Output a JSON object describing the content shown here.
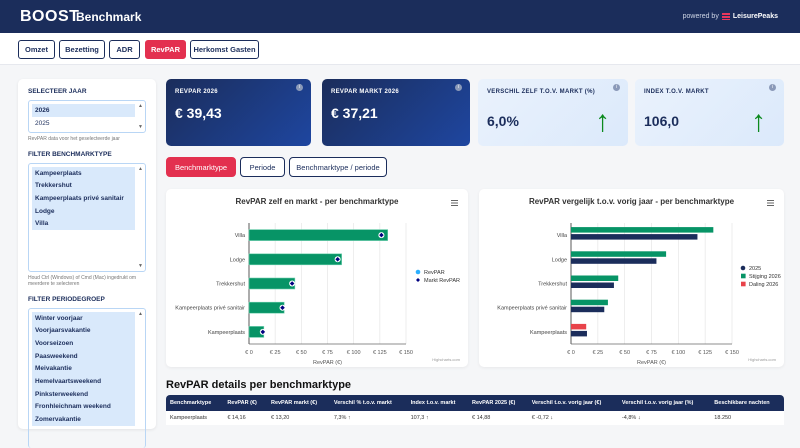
{
  "header": {
    "logo": "BOOST",
    "title": "Benchmark",
    "powered_by": "powered by",
    "brand": "LeisurePeaks"
  },
  "nav": [
    {
      "label": "Omzet"
    },
    {
      "label": "Bezetting"
    },
    {
      "label": "ADR"
    },
    {
      "label": "RevPAR",
      "active": true
    },
    {
      "label": "Herkomst Gasten"
    }
  ],
  "sidebar": {
    "year_label": "SELECTEER JAAR",
    "years": [
      "2026",
      "2025"
    ],
    "year_hint": "RevPAR data voor het geselecteerde jaar",
    "type_label": "FILTER BENCHMARKTYPE",
    "types": [
      "Kampeerplaats",
      "Trekkershut",
      "Kampeerplaats privé sanitair",
      "Lodge",
      "Villa"
    ],
    "type_hint": "Houd Ctrl (Windows) of Cmd (Mac) ingedrukt om meerdere te selecteren",
    "period_label": "FILTER PERIODEGROEP",
    "periods": [
      "Winter voorjaar",
      "Voorjaarsvakantie",
      "Voorseizoen",
      "Paasweekend",
      "Meivakantie",
      "Hemelvaartsweekend",
      "Pinksterweekend",
      "Fronhleichnam weekend",
      "Zomervakantie"
    ]
  },
  "kpis": [
    {
      "label": "REVPAR 2026",
      "value": "€ 39,43"
    },
    {
      "label": "REVPAR MARKT 2026",
      "value": "€ 37,21"
    },
    {
      "label": "VERSCHIL ZELF T.O.V. MARKT (%)",
      "value": "6,0%"
    },
    {
      "label": "INDEX T.O.V. MARKT",
      "value": "106,0"
    }
  ],
  "info_glyph": "i",
  "arrow_glyph": "↑",
  "segments": [
    {
      "label": "Benchmarktype",
      "active": true
    },
    {
      "label": "Periode"
    },
    {
      "label": "Benchmarktype / periode"
    }
  ],
  "chart_data": [
    {
      "type": "bar",
      "title": "RevPAR zelf en markt - per benchmarktype",
      "categories": [
        "Villa",
        "Lodge",
        "Trekkershut",
        "Kampeerplaats privé sanitair",
        "Kampeerplaats"
      ],
      "series": [
        {
          "name": "RevPAR",
          "values": [
            132.5,
            88.5,
            43.8,
            33.6,
            14.16
          ],
          "color": "#079466"
        },
        {
          "name": "Markt RevPAR",
          "values": [
            126.5,
            84.7,
            41.2,
            32.0,
            13.2
          ],
          "color": "#000080"
        }
      ],
      "legend": [
        "RevPAR",
        "Markt RevPAR"
      ],
      "legend_colors": [
        "#2caffe",
        "#000080"
      ],
      "xlabel": "RevPAR (€)",
      "xticks": [
        "€ 0",
        "€ 25",
        "€ 50",
        "€ 75",
        "€ 100",
        "€ 125",
        "€ 150"
      ],
      "xlim": [
        0,
        150
      ],
      "credits": "Highcharts.com"
    },
    {
      "type": "bar",
      "title": "RevPAR vergelijk t.o.v. vorig jaar - per benchmarktype",
      "categories": [
        "Villa",
        "Lodge",
        "Trekkershut",
        "Kampeerplaats privé sanitair",
        "Kampeerplaats"
      ],
      "series": [
        {
          "name": "2026",
          "values": [
            132.6,
            88.6,
            44.0,
            34.4,
            14.16
          ],
          "colors": [
            "#079466",
            "#079466",
            "#079466",
            "#079466",
            "#e8434a"
          ]
        },
        {
          "name": "2025",
          "values": [
            117.8,
            79.6,
            40.0,
            31.0,
            14.88
          ],
          "color": "#1b2d5b"
        }
      ],
      "legend": [
        "2025",
        "Stijging 2026",
        "Daling 2026"
      ],
      "legend_colors": [
        "#1b2d5b",
        "#079466",
        "#e8434a"
      ],
      "xlabel": "RevPAR (€)",
      "xticks": [
        "€ 0",
        "€ 25",
        "€ 50",
        "€ 75",
        "€ 100",
        "€ 125",
        "€ 150"
      ],
      "xlim": [
        0,
        150
      ],
      "credits": "Highcharts.com"
    }
  ],
  "table": {
    "title": "RevPAR details per benchmarktype",
    "headers": [
      "Benchmarktype",
      "RevPAR (€)",
      "RevPAR markt (€)",
      "Verschil % t.o.v. markt",
      "Index t.o.v. markt",
      "RevPAR 2025 (€)",
      "Verschil t.o.v. vorig jaar (€)",
      "Verschil t.o.v. vorig jaar (%)",
      "Beschikbare nachten"
    ],
    "rows": [
      [
        "Kampeerplaats",
        "€ 14,16",
        "€ 13,20",
        "7,3% ↑",
        "107,3 ↑",
        "€ 14,88",
        "€ -0,72 ↓",
        "-4,8% ↓",
        "18.250"
      ]
    ]
  }
}
